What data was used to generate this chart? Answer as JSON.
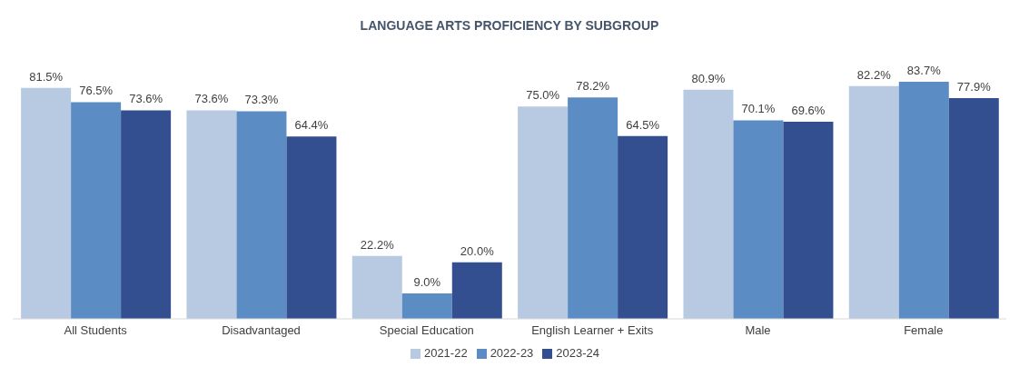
{
  "chart_data": {
    "type": "bar",
    "title": "LANGUAGE ARTS PROFICIENCY BY SUBGROUP",
    "categories": [
      "All Students",
      "Disadvantaged",
      "Special Education",
      "English Learner + Exits",
      "Male",
      "Female"
    ],
    "series": [
      {
        "name": "2021-22",
        "color": "#b8c9e2",
        "values": [
          81.5,
          73.6,
          22.2,
          75.0,
          80.9,
          82.2
        ],
        "value_labels": [
          "81.5%",
          "73.6%",
          "22.2%",
          "75.0%",
          "80.9%",
          "82.2%"
        ]
      },
      {
        "name": "2022-23",
        "color": "#5b8cc3",
        "values": [
          76.5,
          73.3,
          9.0,
          78.2,
          70.1,
          83.7
        ],
        "value_labels": [
          "76.5%",
          "73.3%",
          "9.0%",
          "78.2%",
          "70.1%",
          "83.7%"
        ]
      },
      {
        "name": "2023-24",
        "color": "#344f8f",
        "values": [
          73.6,
          64.4,
          20.0,
          64.5,
          69.6,
          77.9
        ],
        "value_labels": [
          "73.6%",
          "64.4%",
          "20.0%",
          "64.5%",
          "69.6%",
          "77.9%"
        ]
      }
    ],
    "grid": false,
    "legend": "bottom"
  }
}
